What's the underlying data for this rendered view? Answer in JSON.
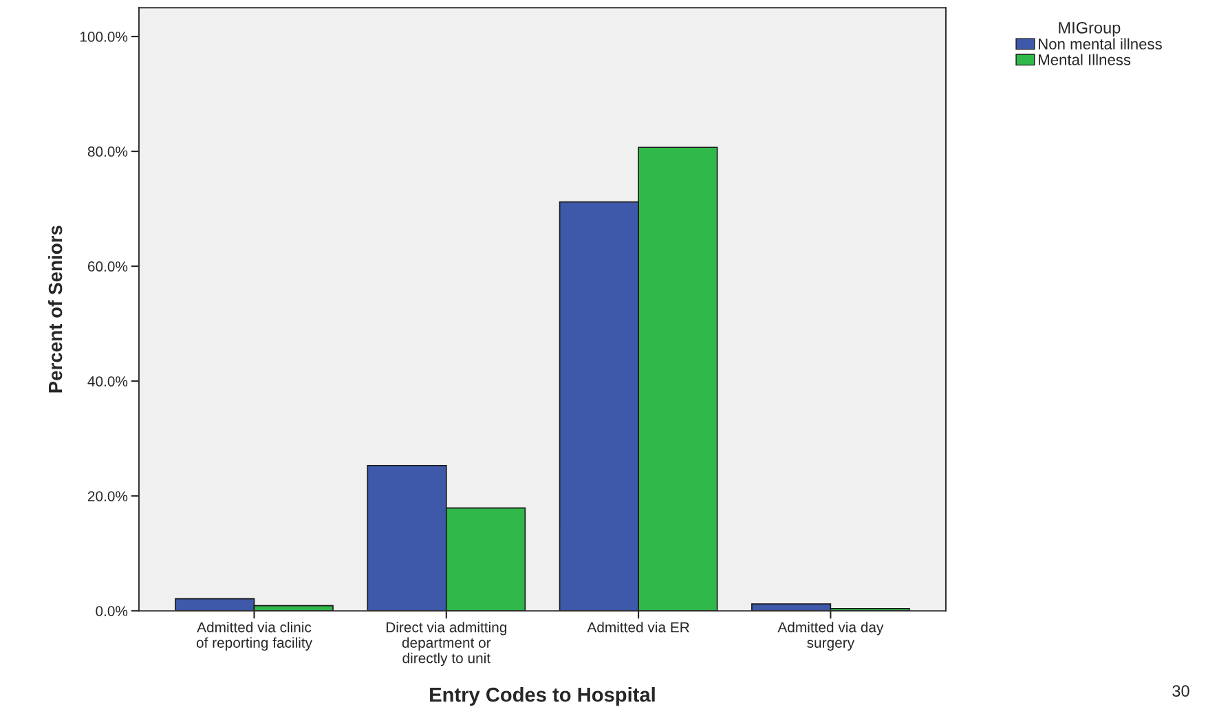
{
  "chart_data": {
    "type": "bar",
    "xlabel": "Entry Codes to Hospital",
    "ylabel": "Percent of Seniors",
    "legend_title": "MIGroup",
    "categories": [
      "Admitted via clinic\nof reporting facility",
      "Direct via admitting\ndepartment or\ndirectly to unit",
      "Admitted via ER",
      "Admitted via day\nsurgery"
    ],
    "series": [
      {
        "name": "Non mental illness",
        "color": "#3e58aa",
        "values": [
          2.1,
          25.3,
          71.2,
          1.2
        ]
      },
      {
        "name": "Mental Illness",
        "color": "#30b84a",
        "values": [
          0.9,
          17.9,
          80.7,
          0.4
        ]
      }
    ],
    "ylim": [
      0,
      105
    ],
    "yticks": [
      {
        "value": 0,
        "label": "0.0%"
      },
      {
        "value": 20,
        "label": "20.0%"
      },
      {
        "value": 40,
        "label": "40.0%"
      },
      {
        "value": 60,
        "label": "60.0%"
      },
      {
        "value": 80,
        "label": "80.0%"
      },
      {
        "value": 100,
        "label": "100.0%"
      }
    ],
    "grid": false,
    "legend": "top right",
    "annotations": [
      "30"
    ]
  }
}
